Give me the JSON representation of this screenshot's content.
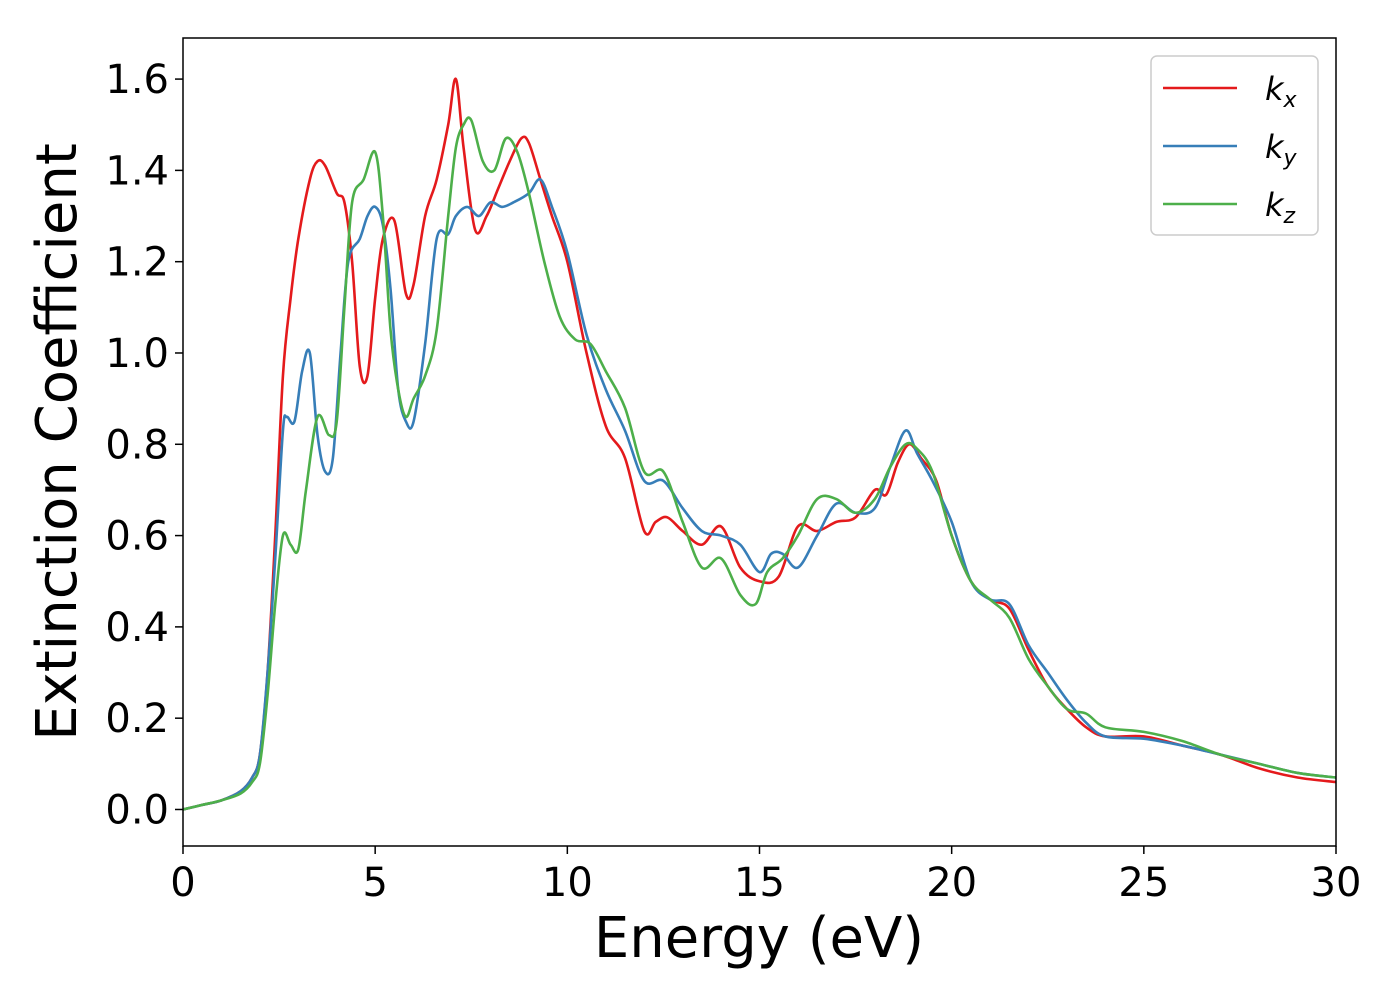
{
  "chart_data": {
    "type": "line",
    "title": "",
    "xlabel": "Energy (eV)",
    "ylabel": "Extinction Coefficient",
    "xlim": [
      0,
      30
    ],
    "ylim": [
      -0.08,
      1.69
    ],
    "xticks": [
      0,
      5,
      10,
      15,
      20,
      25,
      30
    ],
    "yticks": [
      "0.0",
      "0.2",
      "0.4",
      "0.6",
      "0.8",
      "1.0",
      "1.2",
      "1.4",
      "1.6"
    ],
    "grid": false,
    "legend_position": "top-right",
    "series": [
      {
        "name": "k",
        "name_sub": "x",
        "color": "#e41a1c",
        "x": [
          0,
          0.5,
          1.0,
          1.5,
          1.8,
          2.0,
          2.2,
          2.4,
          2.6,
          2.8,
          3.0,
          3.3,
          3.5,
          3.7,
          4.0,
          4.2,
          4.4,
          4.6,
          4.8,
          5.0,
          5.2,
          5.5,
          5.8,
          6.0,
          6.3,
          6.6,
          6.9,
          7.1,
          7.3,
          7.6,
          7.9,
          8.2,
          8.5,
          8.8,
          9.0,
          9.3,
          9.6,
          10.0,
          10.5,
          11.0,
          11.5,
          12.0,
          12.3,
          12.6,
          13.0,
          13.5,
          14.0,
          14.5,
          15.0,
          15.5,
          16.0,
          16.5,
          17.0,
          17.5,
          18.0,
          18.3,
          18.6,
          18.9,
          19.2,
          19.6,
          20.0,
          20.5,
          21.0,
          21.5,
          22.0,
          22.5,
          23.0,
          23.5,
          24.0,
          25.0,
          26.0,
          27.0,
          28.0,
          29.0,
          30.0
        ],
        "values": [
          0.0,
          0.01,
          0.02,
          0.04,
          0.07,
          0.12,
          0.3,
          0.6,
          0.95,
          1.12,
          1.25,
          1.38,
          1.42,
          1.41,
          1.35,
          1.33,
          1.2,
          0.97,
          0.95,
          1.12,
          1.25,
          1.29,
          1.13,
          1.15,
          1.3,
          1.38,
          1.5,
          1.6,
          1.45,
          1.27,
          1.3,
          1.36,
          1.42,
          1.47,
          1.46,
          1.38,
          1.3,
          1.2,
          1.0,
          0.84,
          0.77,
          0.61,
          0.63,
          0.64,
          0.61,
          0.58,
          0.62,
          0.53,
          0.5,
          0.51,
          0.62,
          0.61,
          0.63,
          0.64,
          0.7,
          0.69,
          0.76,
          0.8,
          0.77,
          0.72,
          0.6,
          0.5,
          0.46,
          0.44,
          0.35,
          0.27,
          0.22,
          0.18,
          0.16,
          0.16,
          0.14,
          0.12,
          0.09,
          0.07,
          0.06
        ]
      },
      {
        "name": "k",
        "name_sub": "y",
        "color": "#377eb8",
        "x": [
          0,
          0.5,
          1.0,
          1.5,
          1.8,
          2.0,
          2.2,
          2.4,
          2.6,
          2.7,
          2.9,
          3.1,
          3.3,
          3.5,
          3.7,
          3.9,
          4.1,
          4.3,
          4.6,
          4.8,
          5.0,
          5.2,
          5.4,
          5.6,
          5.8,
          6.0,
          6.3,
          6.6,
          6.9,
          7.1,
          7.4,
          7.7,
          8.0,
          8.3,
          8.6,
          9.0,
          9.3,
          9.6,
          10.0,
          10.5,
          11.0,
          11.5,
          12.0,
          12.5,
          13.0,
          13.5,
          14.0,
          14.5,
          15.0,
          15.3,
          15.6,
          16.0,
          16.5,
          17.0,
          17.5,
          18.0,
          18.4,
          18.8,
          19.1,
          19.5,
          20.0,
          20.5,
          21.0,
          21.5,
          22.0,
          22.5,
          23.0,
          23.5,
          24.0,
          25.0,
          26.0,
          27.0,
          28.0,
          29.0,
          30.0
        ],
        "values": [
          0.0,
          0.01,
          0.02,
          0.04,
          0.07,
          0.12,
          0.3,
          0.55,
          0.83,
          0.86,
          0.85,
          0.96,
          1.0,
          0.82,
          0.74,
          0.77,
          1.0,
          1.2,
          1.25,
          1.3,
          1.32,
          1.28,
          1.14,
          0.92,
          0.85,
          0.85,
          1.02,
          1.25,
          1.26,
          1.3,
          1.32,
          1.3,
          1.33,
          1.32,
          1.33,
          1.35,
          1.38,
          1.32,
          1.22,
          1.04,
          0.92,
          0.83,
          0.72,
          0.72,
          0.66,
          0.61,
          0.6,
          0.58,
          0.52,
          0.56,
          0.56,
          0.53,
          0.6,
          0.67,
          0.65,
          0.66,
          0.75,
          0.83,
          0.78,
          0.72,
          0.63,
          0.5,
          0.46,
          0.45,
          0.36,
          0.3,
          0.24,
          0.19,
          0.16,
          0.155,
          0.14,
          0.12,
          0.1,
          0.08,
          0.07
        ]
      },
      {
        "name": "k",
        "name_sub": "z",
        "color": "#4daf4a",
        "x": [
          0,
          0.5,
          1.0,
          1.5,
          1.8,
          2.0,
          2.2,
          2.4,
          2.6,
          2.8,
          3.0,
          3.2,
          3.5,
          3.8,
          4.0,
          4.2,
          4.4,
          4.7,
          5.0,
          5.2,
          5.4,
          5.6,
          5.8,
          6.0,
          6.3,
          6.6,
          6.9,
          7.1,
          7.3,
          7.5,
          7.8,
          8.1,
          8.4,
          8.7,
          9.0,
          9.4,
          9.8,
          10.2,
          10.6,
          11.0,
          11.5,
          12.0,
          12.5,
          13.0,
          13.5,
          14.0,
          14.5,
          14.9,
          15.2,
          15.6,
          16.0,
          16.5,
          17.0,
          17.5,
          18.0,
          18.4,
          18.8,
          19.1,
          19.5,
          20.0,
          20.5,
          21.0,
          21.5,
          22.0,
          22.5,
          23.0,
          23.5,
          24.0,
          25.0,
          26.0,
          27.0,
          28.0,
          29.0,
          30.0
        ],
        "values": [
          0.0,
          0.01,
          0.02,
          0.035,
          0.06,
          0.1,
          0.25,
          0.45,
          0.6,
          0.58,
          0.57,
          0.7,
          0.86,
          0.82,
          0.85,
          1.1,
          1.33,
          1.38,
          1.44,
          1.3,
          1.05,
          0.92,
          0.86,
          0.9,
          0.95,
          1.05,
          1.3,
          1.45,
          1.5,
          1.51,
          1.42,
          1.4,
          1.47,
          1.44,
          1.35,
          1.2,
          1.08,
          1.03,
          1.02,
          0.96,
          0.88,
          0.74,
          0.74,
          0.63,
          0.53,
          0.55,
          0.47,
          0.45,
          0.52,
          0.55,
          0.6,
          0.68,
          0.68,
          0.65,
          0.68,
          0.75,
          0.8,
          0.79,
          0.74,
          0.6,
          0.5,
          0.46,
          0.42,
          0.33,
          0.27,
          0.22,
          0.21,
          0.18,
          0.17,
          0.15,
          0.12,
          0.1,
          0.08,
          0.07
        ]
      }
    ]
  }
}
